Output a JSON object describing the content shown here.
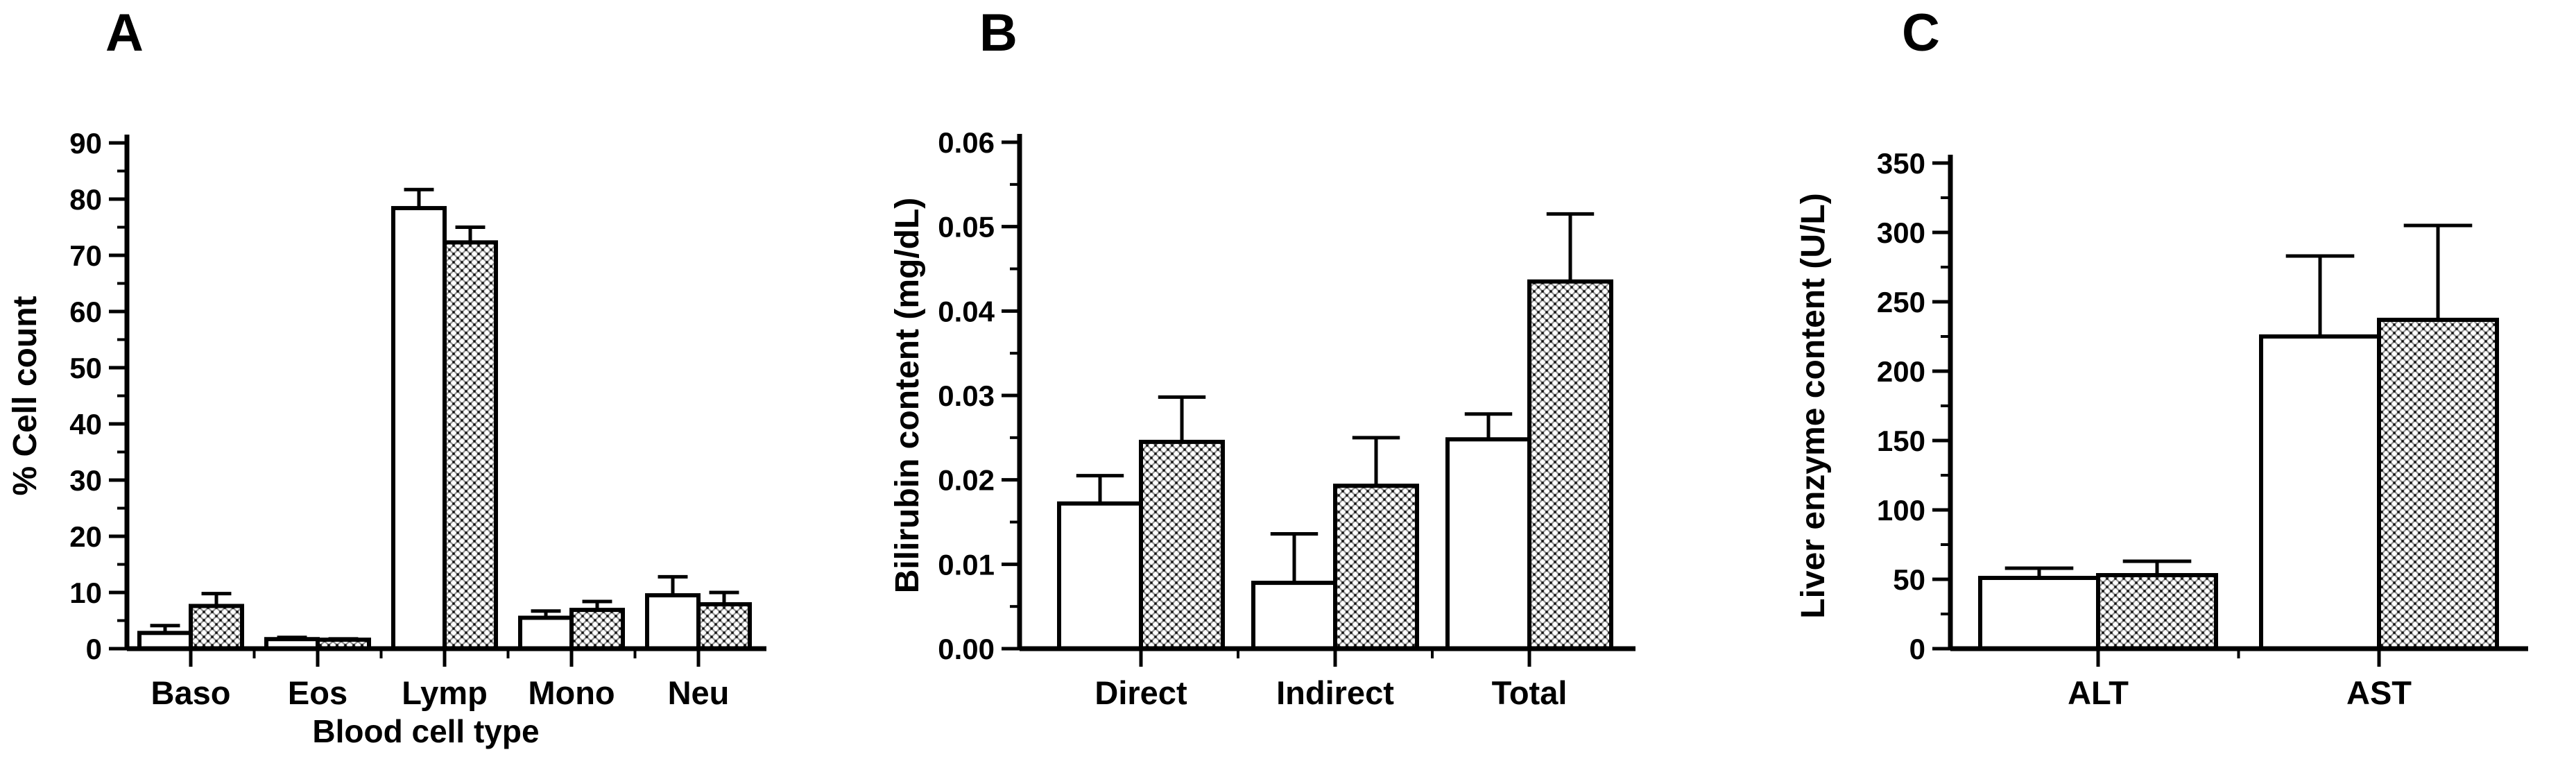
{
  "figure": {
    "background_color": "#ffffff",
    "ink_color": "#000000",
    "hatch_line_color": "#989898",
    "hatch_dot_color": "#111111"
  },
  "chart_data": [
    {
      "type": "bar",
      "panel_label": "A",
      "title": "",
      "xlabel": "Blood cell type",
      "ylabel": "% Cell count",
      "ylim": [
        0,
        90
      ],
      "ytick_step": 10,
      "ytick_labels": [
        "0",
        "10",
        "20",
        "30",
        "40",
        "50",
        "60",
        "70",
        "80",
        "90"
      ],
      "grid": false,
      "legend": "none",
      "categories": [
        "Baso",
        "Eos",
        "Lymp",
        "Mono",
        "Neu"
      ],
      "series": [
        {
          "name": "open-bars",
          "fill": "white",
          "values": [
            2.8,
            1.7,
            78.4,
            5.5,
            9.5
          ],
          "errors_up": [
            1.3,
            0.3,
            3.3,
            1.2,
            3.3
          ]
        },
        {
          "name": "hatched-bars",
          "fill": "hatch",
          "values": [
            7.6,
            1.6,
            72.3,
            6.9,
            7.9
          ],
          "errors_up": [
            2.2,
            0.15,
            2.7,
            1.5,
            2.1
          ]
        }
      ]
    },
    {
      "type": "bar",
      "panel_label": "B",
      "title": "",
      "xlabel": "",
      "ylabel": "Bilirubin content (mg/dL)",
      "ylim": [
        0,
        0.06
      ],
      "ytick_step": 0.01,
      "ytick_labels": [
        "0.00",
        "0.01",
        "0.02",
        "0.03",
        "0.04",
        "0.05",
        "0.06"
      ],
      "grid": false,
      "legend": "none",
      "categories": [
        "Direct",
        "Indirect",
        "Total"
      ],
      "series": [
        {
          "name": "open-bars",
          "fill": "white",
          "values": [
            0.0172,
            0.0078,
            0.0248
          ],
          "errors_up": [
            0.0033,
            0.0058,
            0.003
          ]
        },
        {
          "name": "hatched-bars",
          "fill": "hatch",
          "values": [
            0.0245,
            0.0193,
            0.0435
          ],
          "errors_up": [
            0.0053,
            0.0057,
            0.008
          ]
        }
      ]
    },
    {
      "type": "bar",
      "panel_label": "C",
      "title": "",
      "xlabel": "",
      "ylabel": "Liver enzyme content (U/L)",
      "ylim": [
        0,
        350
      ],
      "ytick_step": 50,
      "ytick_labels": [
        "0",
        "50",
        "100",
        "150",
        "200",
        "250",
        "300",
        "350"
      ],
      "grid": false,
      "legend": "none",
      "categories": [
        "ALT",
        "AST"
      ],
      "series": [
        {
          "name": "open-bars",
          "fill": "white",
          "values": [
            51,
            225
          ],
          "errors_up": [
            7,
            58
          ]
        },
        {
          "name": "hatched-bars",
          "fill": "hatch",
          "values": [
            53,
            237
          ],
          "errors_up": [
            10,
            68
          ]
        }
      ]
    }
  ]
}
